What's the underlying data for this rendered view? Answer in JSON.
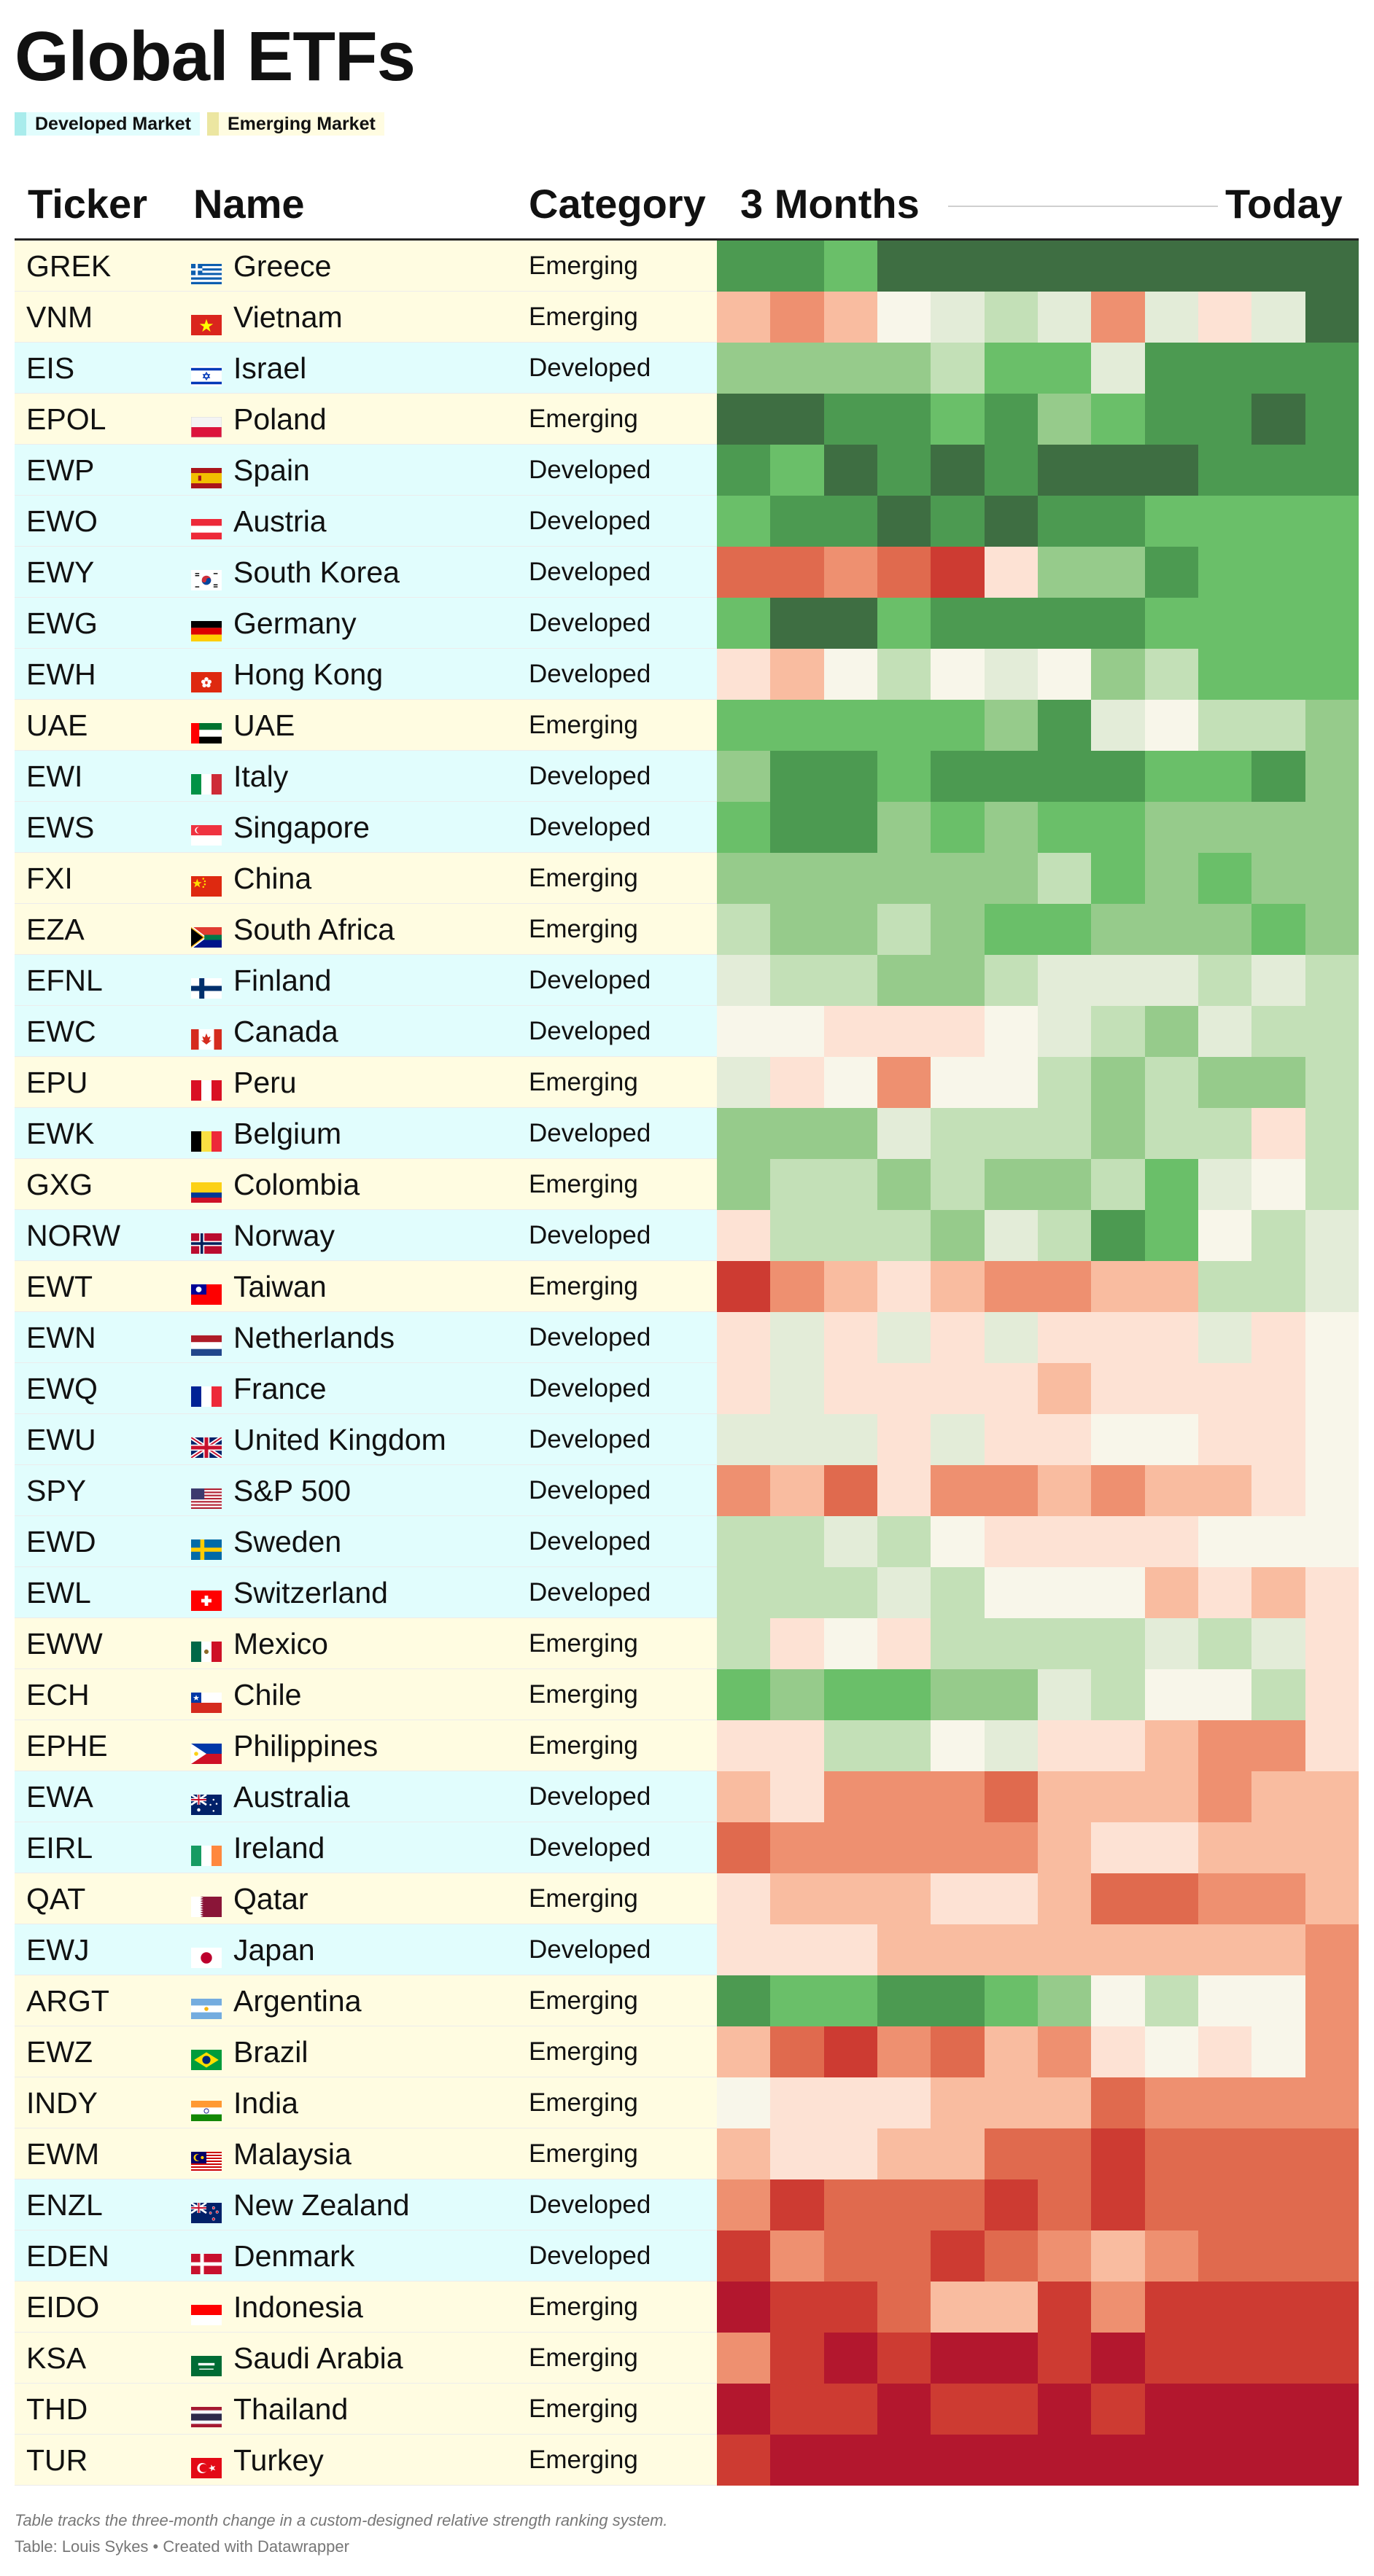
{
  "title": "Global ETFs",
  "legend": [
    {
      "label": "Developed Market",
      "swatch": "#a9ecec",
      "bg": "#e1fdfd"
    },
    {
      "label": "Emerging Market",
      "swatch": "#ece6a1",
      "bg": "#fffce1"
    }
  ],
  "columns": {
    "ticker": "Ticker",
    "name": "Name",
    "category": "Category",
    "start": "3 Months",
    "end": "Today"
  },
  "colors": {
    "developed_bg": "#e1fdfd",
    "emerging_bg": "#fffce1",
    "heat_scale": [
      "#b3172e",
      "#cd3b32",
      "#e06a4e",
      "#ee9070",
      "#f9bca0",
      "#fde2d4",
      "#f8f6ea",
      "#e3ecd8",
      "#c3e0b7",
      "#96cb8b",
      "#6abf69",
      "#4c9a51",
      "#3e6e42"
    ]
  },
  "chart_data": {
    "type": "heatmap",
    "title": "Global ETFs",
    "value_scale": "0 = weakest relative strength (red), 12 = strongest (green)",
    "x_start_label": "3 Months",
    "x_end_label": "Today",
    "columns_count": 12,
    "rows": [
      {
        "ticker": "GREK",
        "flag": "greece",
        "name": "Greece",
        "category": "Emerging",
        "market": "emerging",
        "values": [
          11,
          11,
          10,
          12,
          12,
          12,
          12,
          12,
          12,
          12,
          12,
          12
        ]
      },
      {
        "ticker": "VNM",
        "flag": "vietnam",
        "name": "Vietnam",
        "category": "Emerging",
        "market": "emerging",
        "values": [
          4,
          3,
          4,
          6,
          7,
          8,
          7,
          3,
          7,
          5,
          7,
          12
        ]
      },
      {
        "ticker": "EIS",
        "flag": "israel",
        "name": "Israel",
        "category": "Developed",
        "market": "developed",
        "values": [
          9,
          9,
          9,
          9,
          8,
          10,
          10,
          7,
          11,
          11,
          11,
          11
        ]
      },
      {
        "ticker": "EPOL",
        "flag": "poland",
        "name": "Poland",
        "category": "Emerging",
        "market": "emerging",
        "values": [
          12,
          12,
          11,
          11,
          10,
          11,
          9,
          10,
          11,
          11,
          12,
          11
        ]
      },
      {
        "ticker": "EWP",
        "flag": "spain",
        "name": "Spain",
        "category": "Developed",
        "market": "developed",
        "values": [
          11,
          10,
          12,
          11,
          12,
          11,
          12,
          12,
          12,
          11,
          11,
          11
        ]
      },
      {
        "ticker": "EWO",
        "flag": "austria",
        "name": "Austria",
        "category": "Developed",
        "market": "developed",
        "values": [
          10,
          11,
          11,
          12,
          11,
          12,
          11,
          11,
          10,
          10,
          10,
          10
        ]
      },
      {
        "ticker": "EWY",
        "flag": "south-korea",
        "name": "South Korea",
        "category": "Developed",
        "market": "developed",
        "values": [
          2,
          2,
          3,
          2,
          1,
          5,
          9,
          9,
          11,
          10,
          10,
          10
        ]
      },
      {
        "ticker": "EWG",
        "flag": "germany",
        "name": "Germany",
        "category": "Developed",
        "market": "developed",
        "values": [
          10,
          12,
          12,
          10,
          11,
          11,
          11,
          11,
          10,
          10,
          10,
          10
        ]
      },
      {
        "ticker": "EWH",
        "flag": "hong-kong",
        "name": "Hong Kong",
        "category": "Developed",
        "market": "developed",
        "values": [
          5,
          4,
          6,
          8,
          6,
          7,
          6,
          9,
          8,
          10,
          10,
          10
        ]
      },
      {
        "ticker": "UAE",
        "flag": "uae",
        "name": "UAE",
        "category": "Emerging",
        "market": "emerging",
        "values": [
          10,
          10,
          10,
          10,
          10,
          9,
          11,
          7,
          6,
          8,
          8,
          9
        ]
      },
      {
        "ticker": "EWI",
        "flag": "italy",
        "name": "Italy",
        "category": "Developed",
        "market": "developed",
        "values": [
          9,
          11,
          11,
          10,
          11,
          11,
          11,
          11,
          10,
          10,
          11,
          9
        ]
      },
      {
        "ticker": "EWS",
        "flag": "singapore",
        "name": "Singapore",
        "category": "Developed",
        "market": "developed",
        "values": [
          10,
          11,
          11,
          9,
          10,
          9,
          10,
          10,
          9,
          9,
          9,
          9
        ]
      },
      {
        "ticker": "FXI",
        "flag": "china",
        "name": "China",
        "category": "Emerging",
        "market": "emerging",
        "values": [
          9,
          9,
          9,
          9,
          9,
          9,
          8,
          10,
          9,
          10,
          9,
          9
        ]
      },
      {
        "ticker": "EZA",
        "flag": "south-africa",
        "name": "South Africa",
        "category": "Emerging",
        "market": "emerging",
        "values": [
          8,
          9,
          9,
          8,
          9,
          10,
          10,
          9,
          9,
          9,
          10,
          9
        ]
      },
      {
        "ticker": "EFNL",
        "flag": "finland",
        "name": "Finland",
        "category": "Developed",
        "market": "developed",
        "values": [
          7,
          8,
          8,
          9,
          9,
          8,
          7,
          7,
          7,
          8,
          7,
          8
        ]
      },
      {
        "ticker": "EWC",
        "flag": "canada",
        "name": "Canada",
        "category": "Developed",
        "market": "developed",
        "values": [
          6,
          6,
          5,
          5,
          5,
          6,
          7,
          8,
          9,
          7,
          8,
          8
        ]
      },
      {
        "ticker": "EPU",
        "flag": "peru",
        "name": "Peru",
        "category": "Emerging",
        "market": "emerging",
        "values": [
          7,
          5,
          6,
          3,
          6,
          6,
          8,
          9,
          8,
          9,
          9,
          8
        ]
      },
      {
        "ticker": "EWK",
        "flag": "belgium",
        "name": "Belgium",
        "category": "Developed",
        "market": "developed",
        "values": [
          9,
          9,
          9,
          7,
          8,
          8,
          8,
          9,
          8,
          8,
          5,
          8
        ]
      },
      {
        "ticker": "GXG",
        "flag": "colombia",
        "name": "Colombia",
        "category": "Emerging",
        "market": "emerging",
        "values": [
          9,
          8,
          8,
          9,
          8,
          9,
          9,
          8,
          10,
          7,
          6,
          8
        ]
      },
      {
        "ticker": "NORW",
        "flag": "norway",
        "name": "Norway",
        "category": "Developed",
        "market": "developed",
        "values": [
          5,
          8,
          8,
          8,
          9,
          7,
          8,
          11,
          10,
          6,
          8,
          7
        ]
      },
      {
        "ticker": "EWT",
        "flag": "taiwan",
        "name": "Taiwan",
        "category": "Emerging",
        "market": "emerging",
        "values": [
          1,
          3,
          4,
          5,
          4,
          3,
          3,
          4,
          4,
          8,
          8,
          7
        ]
      },
      {
        "ticker": "EWN",
        "flag": "netherlands",
        "name": "Netherlands",
        "category": "Developed",
        "market": "developed",
        "values": [
          5,
          7,
          5,
          7,
          5,
          7,
          5,
          5,
          5,
          7,
          5,
          6
        ]
      },
      {
        "ticker": "EWQ",
        "flag": "france",
        "name": "France",
        "category": "Developed",
        "market": "developed",
        "values": [
          5,
          7,
          5,
          5,
          5,
          5,
          4,
          5,
          5,
          5,
          5,
          6
        ]
      },
      {
        "ticker": "EWU",
        "flag": "uk",
        "name": "United Kingdom",
        "category": "Developed",
        "market": "developed",
        "values": [
          7,
          7,
          7,
          5,
          7,
          5,
          5,
          6,
          6,
          5,
          5,
          6
        ]
      },
      {
        "ticker": "SPY",
        "flag": "usa",
        "name": "S&P 500",
        "category": "Developed",
        "market": "developed",
        "values": [
          3,
          4,
          2,
          5,
          3,
          3,
          4,
          3,
          4,
          4,
          5,
          6
        ]
      },
      {
        "ticker": "EWD",
        "flag": "sweden",
        "name": "Sweden",
        "category": "Developed",
        "market": "developed",
        "values": [
          8,
          8,
          7,
          8,
          6,
          5,
          5,
          5,
          5,
          6,
          6,
          6
        ]
      },
      {
        "ticker": "EWL",
        "flag": "switzerland",
        "name": "Switzerland",
        "category": "Developed",
        "market": "developed",
        "values": [
          8,
          8,
          8,
          7,
          8,
          6,
          6,
          6,
          4,
          5,
          4,
          5
        ]
      },
      {
        "ticker": "EWW",
        "flag": "mexico",
        "name": "Mexico",
        "category": "Emerging",
        "market": "emerging",
        "values": [
          8,
          5,
          6,
          5,
          8,
          8,
          8,
          8,
          7,
          8,
          7,
          5
        ]
      },
      {
        "ticker": "ECH",
        "flag": "chile",
        "name": "Chile",
        "category": "Emerging",
        "market": "emerging",
        "values": [
          10,
          9,
          10,
          10,
          9,
          9,
          7,
          8,
          6,
          6,
          8,
          5
        ]
      },
      {
        "ticker": "EPHE",
        "flag": "philippines",
        "name": "Philippines",
        "category": "Emerging",
        "market": "emerging",
        "values": [
          5,
          5,
          8,
          8,
          6,
          7,
          5,
          5,
          4,
          3,
          3,
          5
        ]
      },
      {
        "ticker": "EWA",
        "flag": "australia",
        "name": "Australia",
        "category": "Developed",
        "market": "developed",
        "values": [
          4,
          5,
          3,
          3,
          3,
          2,
          4,
          4,
          4,
          3,
          4,
          4
        ]
      },
      {
        "ticker": "EIRL",
        "flag": "ireland",
        "name": "Ireland",
        "category": "Developed",
        "market": "developed",
        "values": [
          2,
          3,
          3,
          3,
          3,
          3,
          4,
          5,
          5,
          4,
          4,
          4
        ]
      },
      {
        "ticker": "QAT",
        "flag": "qatar",
        "name": "Qatar",
        "category": "Emerging",
        "market": "emerging",
        "values": [
          5,
          4,
          4,
          4,
          5,
          5,
          4,
          2,
          2,
          3,
          3,
          4
        ]
      },
      {
        "ticker": "EWJ",
        "flag": "japan",
        "name": "Japan",
        "category": "Developed",
        "market": "developed",
        "values": [
          5,
          5,
          5,
          4,
          4,
          4,
          4,
          4,
          4,
          4,
          4,
          3
        ]
      },
      {
        "ticker": "ARGT",
        "flag": "argentina",
        "name": "Argentina",
        "category": "Emerging",
        "market": "emerging",
        "values": [
          11,
          10,
          10,
          11,
          11,
          10,
          9,
          6,
          8,
          6,
          6,
          3
        ]
      },
      {
        "ticker": "EWZ",
        "flag": "brazil",
        "name": "Brazil",
        "category": "Emerging",
        "market": "emerging",
        "values": [
          4,
          2,
          1,
          3,
          2,
          4,
          3,
          5,
          6,
          5,
          6,
          3
        ]
      },
      {
        "ticker": "INDY",
        "flag": "india",
        "name": "India",
        "category": "Emerging",
        "market": "emerging",
        "values": [
          6,
          5,
          5,
          5,
          4,
          4,
          4,
          2,
          3,
          3,
          3,
          3
        ]
      },
      {
        "ticker": "EWM",
        "flag": "malaysia",
        "name": "Malaysia",
        "category": "Emerging",
        "market": "emerging",
        "values": [
          4,
          5,
          5,
          4,
          4,
          2,
          2,
          1,
          2,
          2,
          2,
          2
        ]
      },
      {
        "ticker": "ENZL",
        "flag": "new-zealand",
        "name": "New Zealand",
        "category": "Developed",
        "market": "developed",
        "values": [
          3,
          1,
          2,
          2,
          2,
          1,
          2,
          1,
          2,
          2,
          2,
          2
        ]
      },
      {
        "ticker": "EDEN",
        "flag": "denmark",
        "name": "Denmark",
        "category": "Developed",
        "market": "developed",
        "values": [
          1,
          3,
          2,
          2,
          1,
          2,
          3,
          4,
          3,
          2,
          2,
          2
        ]
      },
      {
        "ticker": "EIDO",
        "flag": "indonesia",
        "name": "Indonesia",
        "category": "Emerging",
        "market": "emerging",
        "values": [
          0,
          1,
          1,
          2,
          4,
          4,
          1,
          3,
          1,
          1,
          1,
          1
        ]
      },
      {
        "ticker": "KSA",
        "flag": "saudi-arabia",
        "name": "Saudi Arabia",
        "category": "Emerging",
        "market": "emerging",
        "values": [
          3,
          1,
          0,
          1,
          0,
          0,
          1,
          0,
          1,
          1,
          1,
          1
        ]
      },
      {
        "ticker": "THD",
        "flag": "thailand",
        "name": "Thailand",
        "category": "Emerging",
        "market": "emerging",
        "values": [
          0,
          1,
          1,
          0,
          1,
          1,
          0,
          1,
          0,
          0,
          0,
          0
        ]
      },
      {
        "ticker": "TUR",
        "flag": "turkey",
        "name": "Turkey",
        "category": "Emerging",
        "market": "emerging",
        "values": [
          1,
          0,
          0,
          0,
          0,
          0,
          0,
          0,
          0,
          0,
          0,
          0
        ]
      }
    ]
  },
  "footer": {
    "note": "Table tracks the three-month change in a custom-designed relative strength ranking system.",
    "source": "Table: Louis Sykes • Created with Datawrapper"
  }
}
